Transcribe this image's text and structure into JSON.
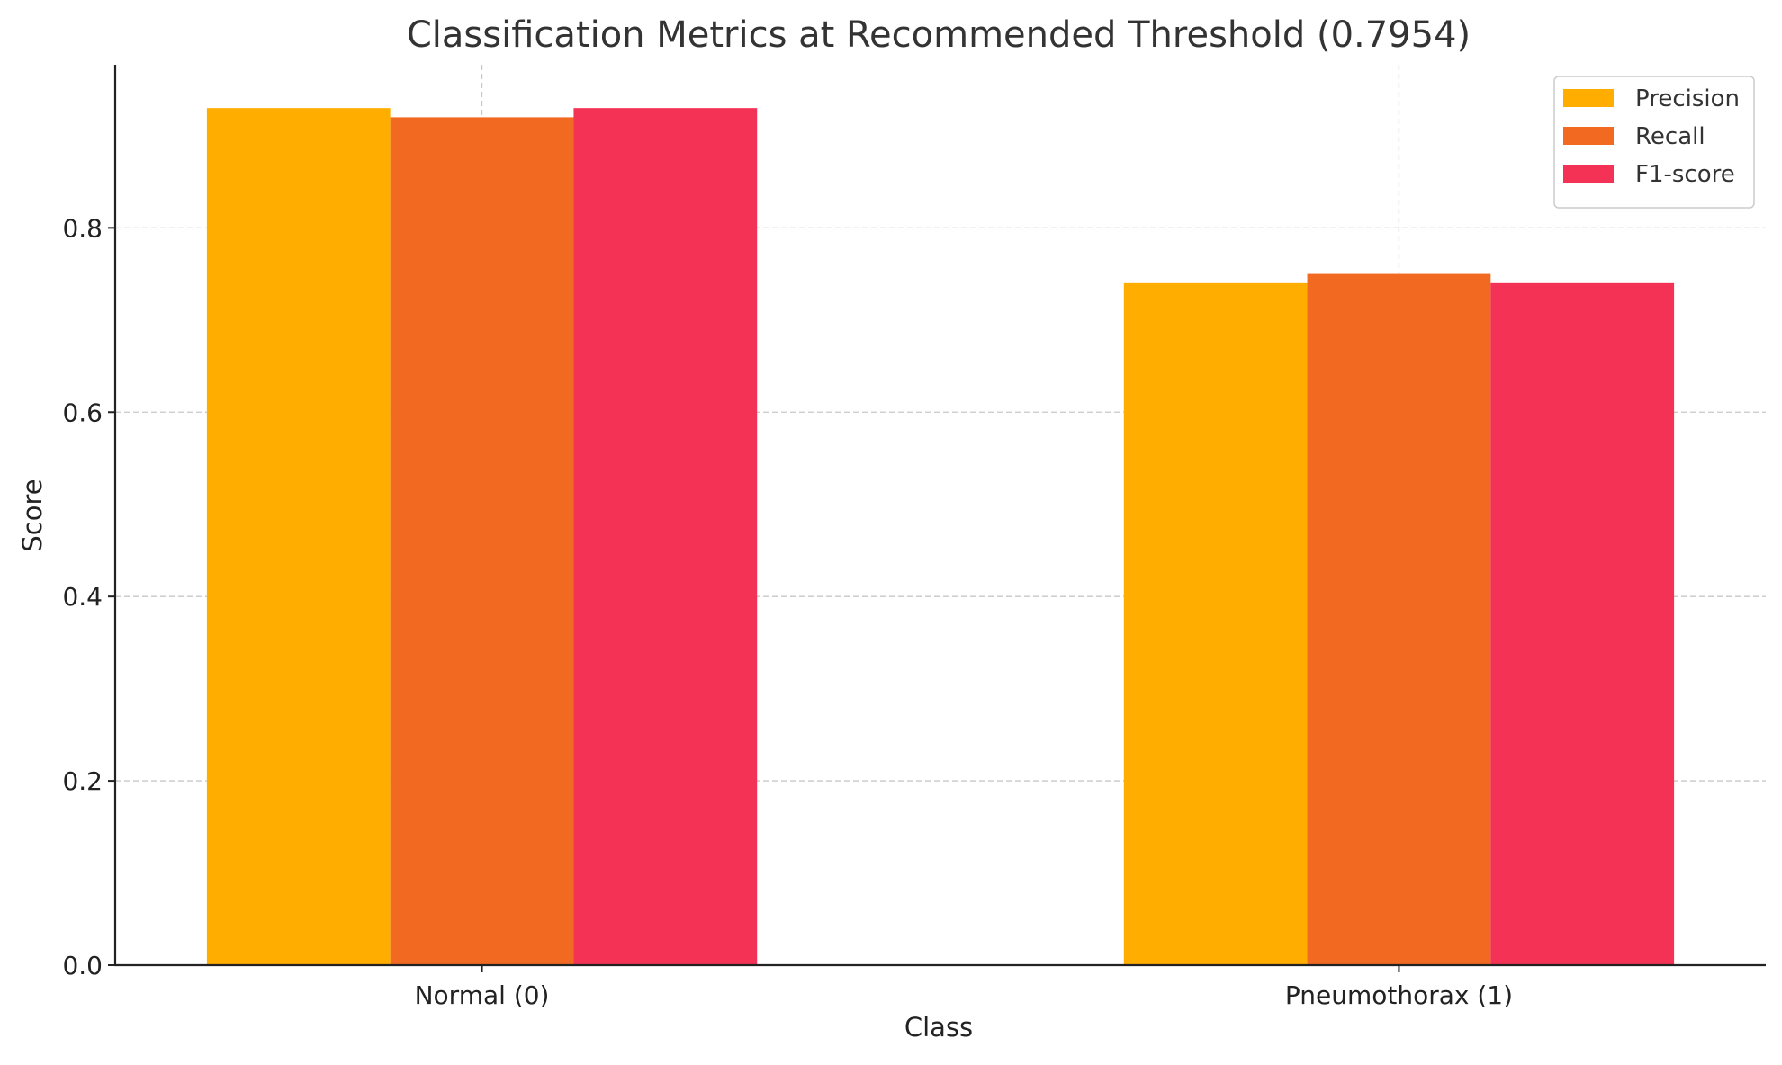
{
  "chart_data": {
    "type": "bar",
    "title": "Classification Metrics at Recommended Threshold (0.7954)",
    "xlabel": "Class",
    "ylabel": "Score",
    "categories": [
      "Normal (0)",
      "Pneumothorax (1)"
    ],
    "series": [
      {
        "name": "Precision",
        "values": [
          0.93,
          0.74
        ],
        "color": "#FFAE00"
      },
      {
        "name": "Recall",
        "values": [
          0.92,
          0.75
        ],
        "color": "#F26922"
      },
      {
        "name": "F1-score",
        "values": [
          0.93,
          0.74
        ],
        "color": "#F43255"
      }
    ],
    "ylim": [
      0,
      0.977
    ],
    "yticks": [
      0.0,
      0.2,
      0.4,
      0.6,
      0.8
    ],
    "ytick_labels": [
      "0.0",
      "0.2",
      "0.4",
      "0.6",
      "0.8"
    ],
    "grid": true,
    "legend_position": "top-right"
  }
}
